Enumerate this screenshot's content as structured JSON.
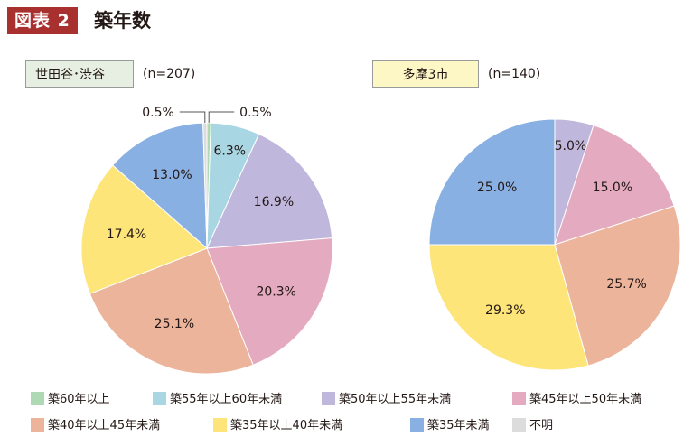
{
  "header": {
    "badge": "図表 2",
    "title": "築年数"
  },
  "regions": [
    {
      "label": "世田谷･渋谷",
      "count": "(n=207)"
    },
    {
      "label": "多摩3市",
      "count": "(n=140)"
    }
  ],
  "colors": {
    "c60": "#aed9b4",
    "c55_60": "#a8d6e2",
    "c50_55": "#c0b7dc",
    "c45_50": "#e4aac0",
    "c40_45": "#ecb49b",
    "c35_40": "#fde57a",
    "c35": "#89b0e2",
    "unknown": "#dcdcdc"
  },
  "chart_data": [
    {
      "type": "pie",
      "title": "世田谷･渋谷 (n=207)",
      "slices": [
        {
          "key": "c60",
          "name": "築60年以上",
          "value": 0.5,
          "label": "0.5%",
          "label_mode": "callout-right"
        },
        {
          "key": "c55_60",
          "name": "築55年以上60年未満",
          "value": 6.3,
          "label": "6.3%"
        },
        {
          "key": "c50_55",
          "name": "築50年以上55年未満",
          "value": 16.9,
          "label": "16.9%"
        },
        {
          "key": "c45_50",
          "name": "築45年以上50年未満",
          "value": 20.3,
          "label": "20.3%"
        },
        {
          "key": "c40_45",
          "name": "築40年以上45年未満",
          "value": 25.1,
          "label": "25.1%"
        },
        {
          "key": "c35_40",
          "name": "築35年以上40年未満",
          "value": 17.4,
          "label": "17.4%"
        },
        {
          "key": "c35",
          "name": "築35年未満",
          "value": 13.0,
          "label": "13.0%"
        },
        {
          "key": "unknown",
          "name": "不明",
          "value": 0.5,
          "label": "0.5%",
          "label_mode": "callout-left"
        }
      ]
    },
    {
      "type": "pie",
      "title": "多摩3市 (n=140)",
      "slices": [
        {
          "key": "c50_55",
          "name": "築50年以上55年未満",
          "value": 5.0,
          "label": "5.0%"
        },
        {
          "key": "c45_50",
          "name": "築45年以上50年未満",
          "value": 15.0,
          "label": "15.0%"
        },
        {
          "key": "c40_45",
          "name": "築40年以上45年未満",
          "value": 25.7,
          "label": "25.7%"
        },
        {
          "key": "c35_40",
          "name": "築35年以上40年未満",
          "value": 29.3,
          "label": "29.3%"
        },
        {
          "key": "c35",
          "name": "築35年未満",
          "value": 25.0,
          "label": "25.0%"
        }
      ]
    }
  ],
  "legend": [
    {
      "key": "c60",
      "label": "築60年以上"
    },
    {
      "key": "c55_60",
      "label": "築55年以上60年未満"
    },
    {
      "key": "c50_55",
      "label": "築50年以上55年未満"
    },
    {
      "key": "c45_50",
      "label": "築45年以上50年未満"
    },
    {
      "key": "c40_45",
      "label": "築40年以上45年未満"
    },
    {
      "key": "c35_40",
      "label": "築35年以上40年未満"
    },
    {
      "key": "c35",
      "label": "築35年未満"
    },
    {
      "key": "unknown",
      "label": "不明"
    }
  ]
}
